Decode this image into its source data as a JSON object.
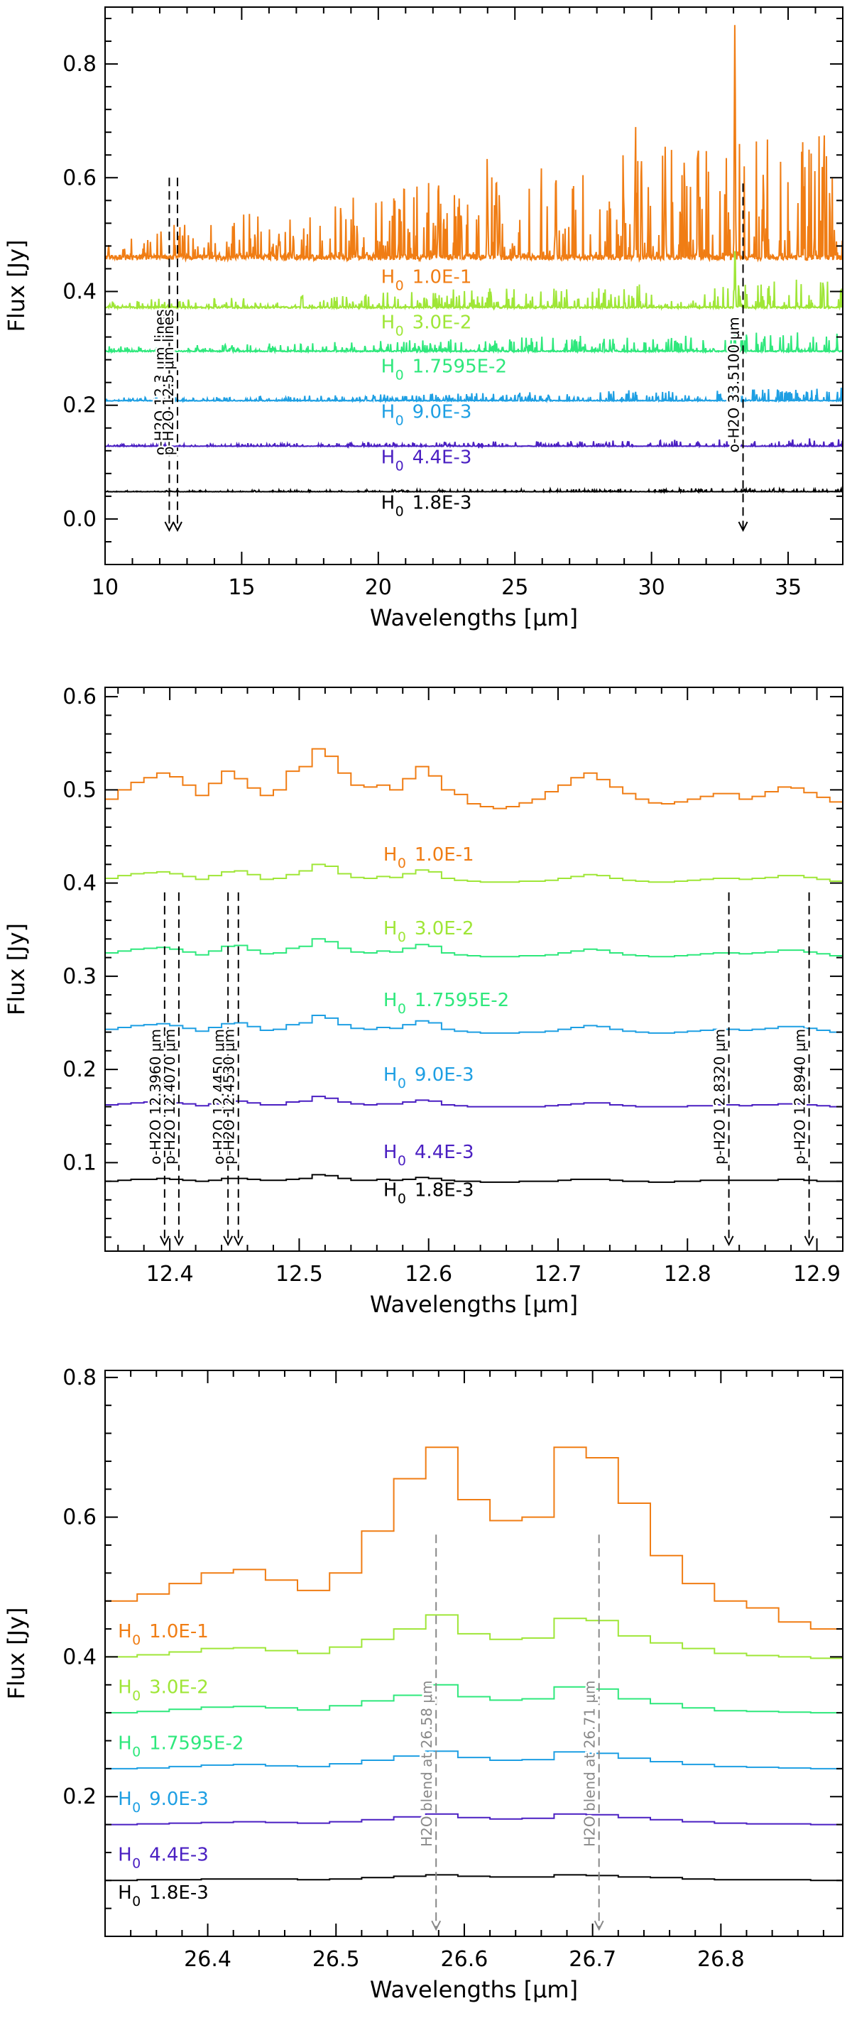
{
  "colors": {
    "axis": "#000000",
    "series": [
      "#F07D14",
      "#9FE637",
      "#2EE87C",
      "#1E9FE3",
      "#4A1FC2",
      "#000000"
    ],
    "annotation_dark": "#000000",
    "annotation_gray": "#888888"
  },
  "chart_data": [
    {
      "type": "line",
      "panel": "top",
      "xlabel": "Wavelengths [μm]",
      "ylabel": "Flux [Jy]",
      "xlim": [
        10,
        37
      ],
      "ylim": [
        -0.08,
        0.9
      ],
      "xticks": [
        10,
        15,
        20,
        25,
        30,
        35
      ],
      "xtick_labels": [
        "10",
        "15",
        "20",
        "25",
        "30",
        "35"
      ],
      "yticks": [
        0.0,
        0.2,
        0.4,
        0.6,
        0.8
      ],
      "ytick_labels": [
        "0.0",
        "0.2",
        "0.4",
        "0.6",
        "0.8"
      ],
      "series": [
        {
          "name": "H0 1.0E-1",
          "label_main": "H",
          "label_sub": "0",
          "label_value": "1.0E-1",
          "base": 0.46,
          "amp": 0.16,
          "growth": 1.4,
          "label_x": 20.1,
          "label_y": 0.415,
          "peaks": [
            {
              "x": 33.05,
              "h": 0.41
            },
            {
              "x": 30.5,
              "h": 0.19
            },
            {
              "x": 31.7,
              "h": 0.18
            },
            {
              "x": 26.5,
              "h": 0.15
            },
            {
              "x": 22.2,
              "h": 0.14
            },
            {
              "x": 29.4,
              "h": 0.14
            },
            {
              "x": 34.1,
              "h": 0.12
            },
            {
              "x": 24.0,
              "h": 0.11
            }
          ]
        },
        {
          "name": "H0 3.0E-2",
          "label_main": "H",
          "label_sub": "0",
          "label_value": "3.0E-2",
          "base": 0.372,
          "amp": 0.045,
          "growth": 1.0,
          "label_x": 20.1,
          "label_y": 0.335,
          "peaks": [
            {
              "x": 33.05,
              "h": 0.07
            }
          ]
        },
        {
          "name": "H0 1.7595E-2",
          "label_main": "H",
          "label_sub": "0",
          "label_value": "1.7595E-2",
          "base": 0.295,
          "amp": 0.032,
          "growth": 1.0,
          "label_x": 20.1,
          "label_y": 0.258,
          "peaks": [
            {
              "x": 33.05,
              "h": 0.045
            }
          ]
        },
        {
          "name": "H0 9.0E-3",
          "label_main": "H",
          "label_sub": "0",
          "label_value": "9.0E-3",
          "base": 0.208,
          "amp": 0.02,
          "growth": 1.0,
          "label_x": 20.1,
          "label_y": 0.178,
          "peaks": []
        },
        {
          "name": "H0 4.4E-3",
          "label_main": "H",
          "label_sub": "0",
          "label_value": "4.4E-3",
          "base": 0.128,
          "amp": 0.012,
          "growth": 1.0,
          "label_x": 20.1,
          "label_y": 0.098,
          "peaks": []
        },
        {
          "name": "H0 1.8E-3",
          "label_main": "H",
          "label_sub": "0",
          "label_value": "1.8E-3",
          "base": 0.048,
          "amp": 0.006,
          "growth": 1.0,
          "label_x": 20.1,
          "label_y": 0.018,
          "peaks": []
        }
      ],
      "annotations": [
        {
          "text": "o-H2O 12.3 μm lines",
          "x": 12.35,
          "y_top": 0.6,
          "y_bottom": -0.02,
          "style": "dark"
        },
        {
          "text": "p-H2O 12.5 μm lines",
          "x": 12.65,
          "y_top": 0.6,
          "y_bottom": -0.02,
          "style": "dark"
        },
        {
          "text": "o-H2O 33.5100 μm",
          "x": 33.35,
          "y_top": 0.59,
          "y_bottom": -0.02,
          "style": "dark"
        }
      ]
    },
    {
      "type": "step",
      "panel": "middle",
      "xlabel": "Wavelengths [μm]",
      "ylabel": "Flux [Jy]",
      "xlim": [
        12.35,
        12.92
      ],
      "ylim": [
        0.005,
        0.61
      ],
      "xticks": [
        12.4,
        12.5,
        12.6,
        12.7,
        12.8,
        12.9
      ],
      "xtick_labels": [
        "12.4",
        "12.5",
        "12.6",
        "12.7",
        "12.8",
        "12.9"
      ],
      "yticks": [
        0.1,
        0.2,
        0.3,
        0.4,
        0.5,
        0.6
      ],
      "ytick_labels": [
        "0.1",
        "0.2",
        "0.3",
        "0.4",
        "0.5",
        "0.6"
      ],
      "x_edges": [
        12.35,
        12.36,
        12.37,
        12.38,
        12.39,
        12.4,
        12.41,
        12.42,
        12.43,
        12.44,
        12.45,
        12.46,
        12.47,
        12.48,
        12.49,
        12.5,
        12.51,
        12.52,
        12.53,
        12.54,
        12.55,
        12.56,
        12.57,
        12.58,
        12.59,
        12.6,
        12.61,
        12.62,
        12.63,
        12.64,
        12.65,
        12.66,
        12.67,
        12.68,
        12.69,
        12.7,
        12.71,
        12.72,
        12.73,
        12.74,
        12.75,
        12.76,
        12.77,
        12.78,
        12.79,
        12.8,
        12.81,
        12.82,
        12.83,
        12.84,
        12.85,
        12.86,
        12.87,
        12.88,
        12.89,
        12.9,
        12.91,
        12.92
      ],
      "series": [
        {
          "name": "H0 1.0E-1",
          "label_main": "H",
          "label_sub": "0",
          "label_value": "1.0E-1",
          "label_x": 12.565,
          "label_y": 0.424,
          "values": [
            0.49,
            0.5,
            0.508,
            0.513,
            0.518,
            0.514,
            0.505,
            0.494,
            0.507,
            0.52,
            0.512,
            0.502,
            0.494,
            0.5,
            0.52,
            0.525,
            0.544,
            0.536,
            0.518,
            0.505,
            0.503,
            0.505,
            0.5,
            0.512,
            0.525,
            0.515,
            0.5,
            0.495,
            0.485,
            0.482,
            0.48,
            0.482,
            0.486,
            0.49,
            0.498,
            0.505,
            0.513,
            0.518,
            0.511,
            0.503,
            0.496,
            0.49,
            0.486,
            0.485,
            0.487,
            0.49,
            0.493,
            0.496,
            0.496,
            0.49,
            0.493,
            0.498,
            0.503,
            0.502,
            0.497,
            0.492,
            0.487
          ]
        },
        {
          "name": "H0 3.0E-2",
          "label_main": "H",
          "label_sub": "0",
          "label_value": "3.0E-2",
          "label_x": 12.565,
          "label_y": 0.345,
          "values": [
            0.405,
            0.408,
            0.41,
            0.411,
            0.412,
            0.41,
            0.407,
            0.404,
            0.408,
            0.412,
            0.413,
            0.409,
            0.404,
            0.405,
            0.409,
            0.413,
            0.42,
            0.418,
            0.41,
            0.406,
            0.405,
            0.407,
            0.406,
            0.41,
            0.414,
            0.412,
            0.405,
            0.403,
            0.402,
            0.401,
            0.401,
            0.401,
            0.402,
            0.402,
            0.403,
            0.405,
            0.407,
            0.409,
            0.408,
            0.405,
            0.403,
            0.402,
            0.401,
            0.401,
            0.402,
            0.403,
            0.404,
            0.405,
            0.405,
            0.404,
            0.405,
            0.406,
            0.408,
            0.408,
            0.406,
            0.404,
            0.402
          ]
        },
        {
          "name": "H0 1.7595E-2",
          "label_main": "H",
          "label_sub": "0",
          "label_value": "1.7595E-2",
          "label_x": 12.565,
          "label_y": 0.268,
          "values": [
            0.325,
            0.327,
            0.329,
            0.33,
            0.331,
            0.329,
            0.326,
            0.323,
            0.327,
            0.332,
            0.333,
            0.328,
            0.324,
            0.325,
            0.33,
            0.332,
            0.34,
            0.337,
            0.33,
            0.326,
            0.325,
            0.327,
            0.326,
            0.33,
            0.334,
            0.332,
            0.325,
            0.323,
            0.322,
            0.321,
            0.321,
            0.321,
            0.322,
            0.322,
            0.323,
            0.325,
            0.327,
            0.329,
            0.328,
            0.325,
            0.323,
            0.322,
            0.321,
            0.321,
            0.322,
            0.323,
            0.324,
            0.325,
            0.325,
            0.324,
            0.325,
            0.326,
            0.328,
            0.328,
            0.326,
            0.324,
            0.322
          ]
        },
        {
          "name": "H0 9.0E-3",
          "label_main": "H",
          "label_sub": "0",
          "label_value": "9.0E-3",
          "label_x": 12.565,
          "label_y": 0.188,
          "values": [
            0.243,
            0.245,
            0.247,
            0.248,
            0.249,
            0.247,
            0.244,
            0.241,
            0.245,
            0.249,
            0.25,
            0.246,
            0.242,
            0.243,
            0.248,
            0.25,
            0.258,
            0.255,
            0.248,
            0.244,
            0.243,
            0.245,
            0.244,
            0.248,
            0.252,
            0.25,
            0.243,
            0.241,
            0.24,
            0.239,
            0.239,
            0.239,
            0.24,
            0.24,
            0.241,
            0.243,
            0.245,
            0.247,
            0.246,
            0.243,
            0.241,
            0.24,
            0.239,
            0.239,
            0.24,
            0.241,
            0.242,
            0.243,
            0.243,
            0.242,
            0.243,
            0.244,
            0.246,
            0.246,
            0.244,
            0.242,
            0.24
          ]
        },
        {
          "name": "H0 4.4E-3",
          "label_main": "H",
          "label_sub": "0",
          "label_value": "4.4E-3",
          "label_x": 12.565,
          "label_y": 0.105,
          "values": [
            0.162,
            0.163,
            0.164,
            0.165,
            0.165,
            0.164,
            0.163,
            0.161,
            0.163,
            0.165,
            0.166,
            0.164,
            0.162,
            0.162,
            0.165,
            0.166,
            0.171,
            0.169,
            0.165,
            0.163,
            0.162,
            0.163,
            0.163,
            0.165,
            0.167,
            0.166,
            0.162,
            0.161,
            0.16,
            0.16,
            0.16,
            0.16,
            0.16,
            0.16,
            0.161,
            0.162,
            0.163,
            0.164,
            0.164,
            0.162,
            0.161,
            0.16,
            0.16,
            0.16,
            0.16,
            0.161,
            0.161,
            0.162,
            0.162,
            0.161,
            0.162,
            0.162,
            0.163,
            0.163,
            0.162,
            0.161,
            0.16
          ]
        },
        {
          "name": "H0 1.8E-3",
          "label_main": "H",
          "label_sub": "0",
          "label_value": "1.8E-3",
          "label_x": 12.565,
          "label_y": 0.064,
          "values": [
            0.08,
            0.081,
            0.082,
            0.082,
            0.083,
            0.082,
            0.081,
            0.08,
            0.081,
            0.083,
            0.083,
            0.082,
            0.081,
            0.081,
            0.082,
            0.083,
            0.087,
            0.086,
            0.083,
            0.081,
            0.081,
            0.082,
            0.081,
            0.082,
            0.084,
            0.083,
            0.081,
            0.08,
            0.08,
            0.079,
            0.079,
            0.079,
            0.08,
            0.08,
            0.08,
            0.081,
            0.082,
            0.082,
            0.082,
            0.081,
            0.08,
            0.08,
            0.079,
            0.079,
            0.08,
            0.08,
            0.081,
            0.081,
            0.081,
            0.081,
            0.081,
            0.081,
            0.082,
            0.082,
            0.081,
            0.08,
            0.08
          ]
        }
      ],
      "annotations": [
        {
          "text": "o-H2O 12.3960 μm",
          "x": 12.396,
          "y_top": 0.39,
          "y_bottom": 0.012,
          "style": "dark"
        },
        {
          "text": "p-H2O 12.4070 μm",
          "x": 12.407,
          "y_top": 0.39,
          "y_bottom": 0.012,
          "style": "dark"
        },
        {
          "text": "o-H2O 12.4450 μm",
          "x": 12.445,
          "y_top": 0.39,
          "y_bottom": 0.012,
          "style": "dark"
        },
        {
          "text": "p-H2O 12.4530 μm",
          "x": 12.453,
          "y_top": 0.39,
          "y_bottom": 0.012,
          "style": "dark"
        },
        {
          "text": "p-H2O 12.8320 μm",
          "x": 12.832,
          "y_top": 0.39,
          "y_bottom": 0.012,
          "style": "dark"
        },
        {
          "text": "p-H2O 12.8940 μm",
          "x": 12.894,
          "y_top": 0.39,
          "y_bottom": 0.012,
          "style": "dark"
        }
      ]
    },
    {
      "type": "step",
      "panel": "bottom",
      "xlabel": "Wavelengths [μm]",
      "ylabel": "Flux [Jy]",
      "xlim": [
        26.32,
        26.895
      ],
      "ylim": [
        0.0,
        0.81
      ],
      "xticks": [
        26.4,
        26.5,
        26.6,
        26.7,
        26.8
      ],
      "xtick_labels": [
        "26.4",
        "26.5",
        "26.6",
        "26.7",
        "26.8"
      ],
      "yticks": [
        0.2,
        0.4,
        0.6,
        0.8
      ],
      "ytick_labels": [
        "0.2",
        "0.4",
        "0.6",
        "0.8"
      ],
      "x_edges": [
        26.32,
        26.345,
        26.37,
        26.395,
        26.42,
        26.445,
        26.47,
        26.495,
        26.52,
        26.545,
        26.57,
        26.595,
        26.62,
        26.645,
        26.67,
        26.695,
        26.72,
        26.745,
        26.77,
        26.795,
        26.82,
        26.845,
        26.87,
        26.895
      ],
      "series": [
        {
          "name": "H0 1.0E-1",
          "label_main": "H",
          "label_sub": "0",
          "label_value": "1.0E-1",
          "label_x": 26.33,
          "label_y": 0.428,
          "values": [
            0.48,
            0.49,
            0.505,
            0.52,
            0.525,
            0.51,
            0.495,
            0.52,
            0.58,
            0.655,
            0.7,
            0.625,
            0.595,
            0.6,
            0.7,
            0.685,
            0.62,
            0.545,
            0.505,
            0.48,
            0.47,
            0.45,
            0.44
          ]
        },
        {
          "name": "H0 3.0E-2",
          "label_main": "H",
          "label_sub": "0",
          "label_value": "3.0E-2",
          "label_x": 26.33,
          "label_y": 0.348,
          "values": [
            0.4,
            0.403,
            0.407,
            0.412,
            0.413,
            0.409,
            0.405,
            0.414,
            0.425,
            0.44,
            0.46,
            0.433,
            0.425,
            0.427,
            0.455,
            0.452,
            0.43,
            0.42,
            0.412,
            0.405,
            0.402,
            0.4,
            0.398
          ]
        },
        {
          "name": "H0 1.7595E-2",
          "label_main": "H",
          "label_sub": "0",
          "label_value": "1.7595E-2",
          "label_x": 26.33,
          "label_y": 0.268,
          "values": [
            0.32,
            0.322,
            0.325,
            0.328,
            0.329,
            0.327,
            0.324,
            0.33,
            0.337,
            0.345,
            0.36,
            0.343,
            0.338,
            0.34,
            0.357,
            0.354,
            0.34,
            0.333,
            0.327,
            0.323,
            0.322,
            0.321,
            0.32
          ]
        },
        {
          "name": "H0 9.0E-3",
          "label_main": "H",
          "label_sub": "0",
          "label_value": "9.0E-3",
          "label_x": 26.33,
          "label_y": 0.188,
          "values": [
            0.24,
            0.241,
            0.243,
            0.245,
            0.246,
            0.244,
            0.243,
            0.247,
            0.252,
            0.258,
            0.265,
            0.256,
            0.252,
            0.253,
            0.264,
            0.262,
            0.255,
            0.25,
            0.246,
            0.243,
            0.242,
            0.241,
            0.24
          ]
        },
        {
          "name": "H0 4.4E-3",
          "label_main": "H",
          "label_sub": "0",
          "label_value": "4.4E-3",
          "label_x": 26.33,
          "label_y": 0.108,
          "values": [
            0.16,
            0.161,
            0.162,
            0.163,
            0.164,
            0.163,
            0.162,
            0.164,
            0.167,
            0.171,
            0.175,
            0.17,
            0.168,
            0.169,
            0.175,
            0.174,
            0.17,
            0.167,
            0.164,
            0.162,
            0.161,
            0.161,
            0.16
          ]
        },
        {
          "name": "H0 1.8E-3",
          "label_main": "H",
          "label_sub": "0",
          "label_value": "1.8E-3",
          "label_x": 26.33,
          "label_y": 0.054,
          "values": [
            0.08,
            0.081,
            0.081,
            0.082,
            0.082,
            0.082,
            0.081,
            0.082,
            0.084,
            0.086,
            0.088,
            0.086,
            0.085,
            0.085,
            0.088,
            0.087,
            0.085,
            0.084,
            0.082,
            0.081,
            0.081,
            0.081,
            0.08
          ]
        }
      ],
      "annotations": [
        {
          "text": "H2O blend at 26.58 μm",
          "x": 26.578,
          "y_top": 0.575,
          "y_bottom": 0.01,
          "style": "gray"
        },
        {
          "text": "H2O blend at 26.71 μm",
          "x": 26.705,
          "y_top": 0.575,
          "y_bottom": 0.01,
          "style": "gray"
        }
      ]
    }
  ]
}
